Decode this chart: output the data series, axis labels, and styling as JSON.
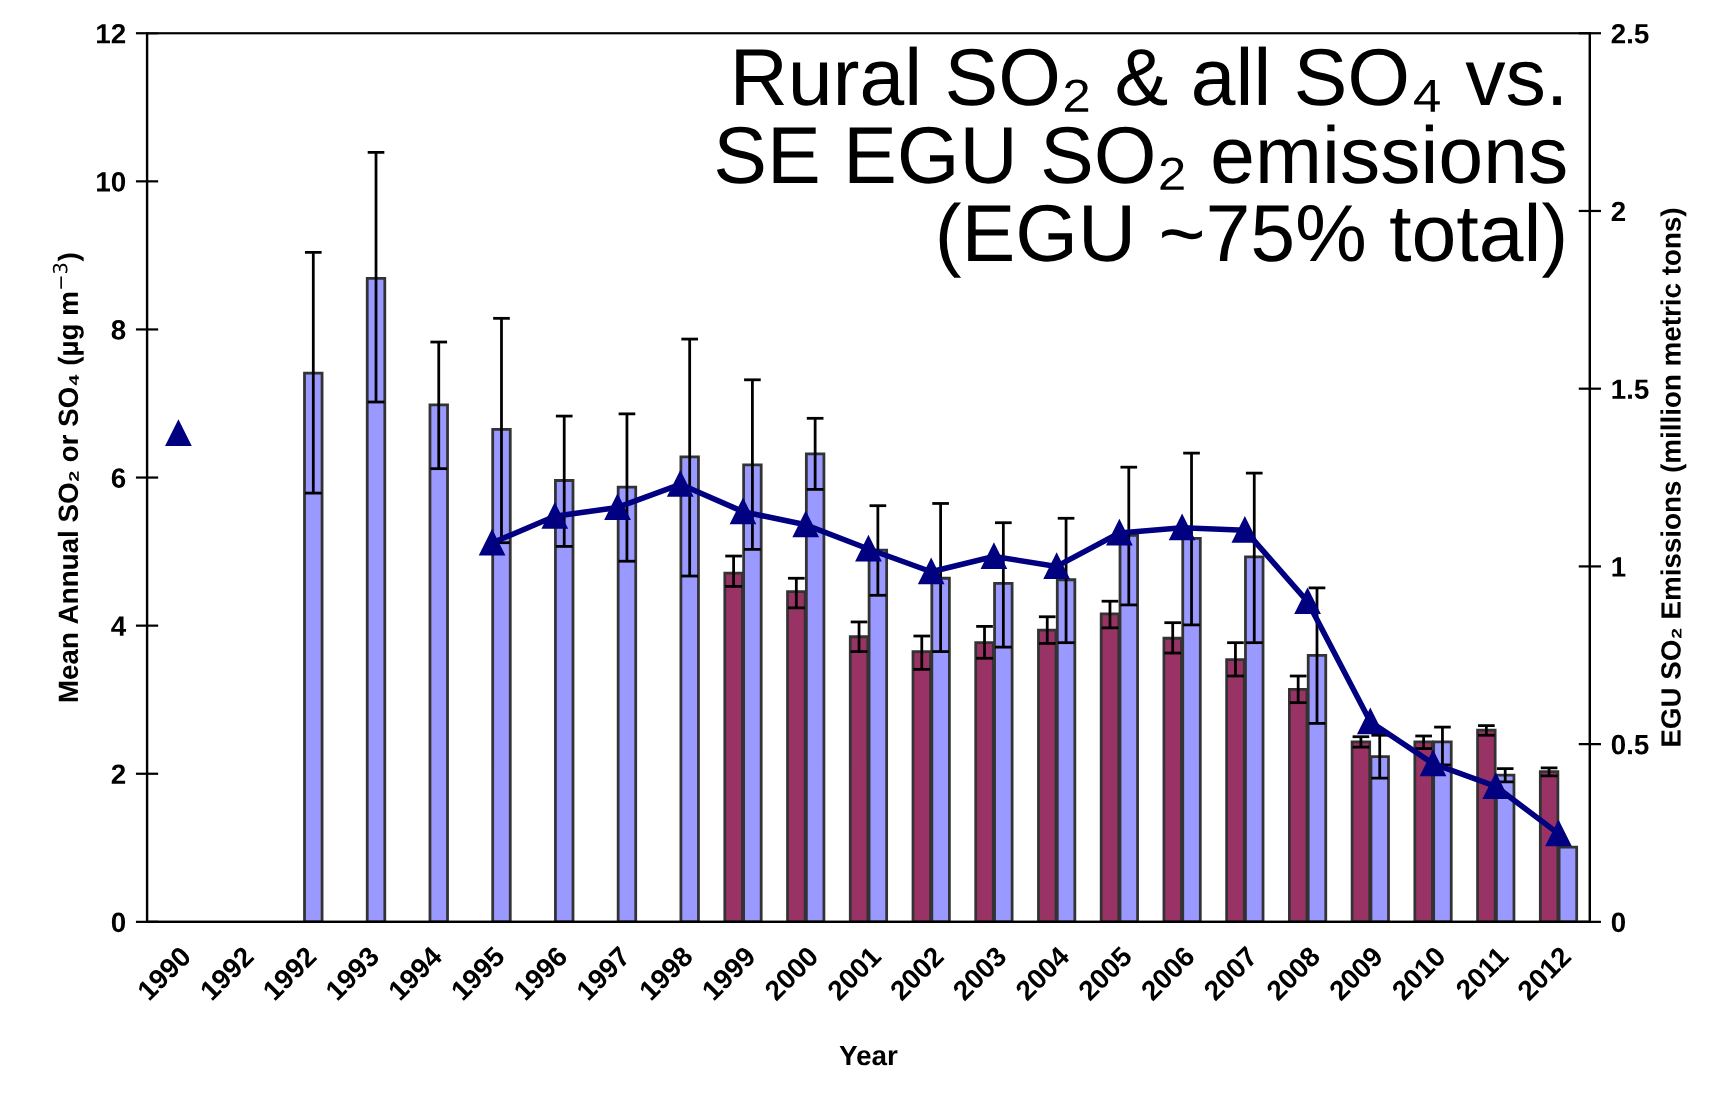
{
  "chart_data": {
    "type": "bar",
    "title": "Rural SO₂ & all SO₄ vs.\nSE EGU SO₂ emissions\n(EGU ~75% total)",
    "xlabel": "Year",
    "ylabel": "Mean Annual SO₂ or SO₄ (µg m$^{−3}$)",
    "y2label": "EGU SO₂ Emissions (million metric tons)",
    "categories": [
      "1990",
      "1992",
      "1992",
      "1993",
      "1994",
      "1995",
      "1996",
      "1997",
      "1998",
      "1999",
      "2000",
      "2001",
      "2002",
      "2003",
      "2004",
      "2005",
      "2006",
      "2007",
      "2008",
      "2009",
      "2010",
      "2011",
      "2012"
    ],
    "series": [
      {
        "color": "#993366",
        "values": [
          null,
          null,
          null,
          null,
          null,
          null,
          null,
          null,
          null,
          4.71,
          4.46,
          3.85,
          3.65,
          3.77,
          3.94,
          4.16,
          3.83,
          3.54,
          3.14,
          2.43,
          2.43,
          2.59,
          2.03
        ],
        "errors": [
          null,
          null,
          null,
          null,
          null,
          null,
          null,
          null,
          null,
          [
            4.53,
            4.94
          ],
          [
            4.24,
            4.64
          ],
          [
            3.65,
            4.05
          ],
          [
            3.41,
            3.86
          ],
          [
            3.56,
            3.99
          ],
          [
            3.76,
            4.12
          ],
          [
            3.97,
            4.33
          ],
          [
            3.63,
            4.04
          ],
          [
            3.32,
            3.77
          ],
          [
            2.96,
            3.32
          ],
          [
            2.36,
            2.5
          ],
          [
            2.34,
            2.51
          ],
          [
            2.52,
            2.65
          ],
          [
            1.97,
            2.08
          ]
        ]
      },
      {
        "color": "#9999ff",
        "values": [
          null,
          null,
          7.41,
          8.69,
          6.98,
          6.65,
          5.96,
          5.87,
          6.28,
          6.17,
          6.32,
          5.02,
          4.64,
          4.57,
          4.62,
          5.22,
          5.18,
          4.93,
          3.6,
          2.23,
          2.43,
          1.98,
          1.01
        ],
        "errors": [
          null,
          null,
          [
            5.79,
            9.04
          ],
          [
            7.02,
            10.39
          ],
          [
            6.12,
            7.83
          ],
          [
            5.12,
            8.15
          ],
          [
            5.07,
            6.83
          ],
          [
            4.87,
            6.86
          ],
          [
            4.67,
            7.87
          ],
          [
            5.03,
            7.32
          ],
          [
            5.84,
            6.8
          ],
          [
            4.41,
            5.62
          ],
          [
            3.65,
            5.65
          ],
          [
            3.71,
            5.39
          ],
          [
            3.77,
            5.45
          ],
          [
            4.28,
            6.14
          ],
          [
            4.01,
            6.33
          ],
          [
            3.77,
            6.06
          ],
          [
            2.68,
            4.51
          ],
          [
            1.94,
            2.52
          ],
          [
            2.12,
            2.63
          ],
          [
            1.89,
            2.07
          ],
          null
        ]
      },
      {
        "type": "line",
        "axis": "y2",
        "color": "#000080",
        "marker": "triangle",
        "values": [
          1.374,
          null,
          null,
          null,
          null,
          1.066,
          1.141,
          1.166,
          1.231,
          1.154,
          1.117,
          1.049,
          0.985,
          1.028,
          1.0,
          1.094,
          1.109,
          1.102,
          0.901,
          0.563,
          0.445,
          0.381,
          0.248
        ]
      }
    ],
    "ylim": [
      0,
      12
    ],
    "yticks": [
      0,
      2,
      4,
      6,
      8,
      10,
      12
    ],
    "y2lim": [
      0,
      2.5
    ],
    "y2ticks": [
      0,
      0.5,
      1,
      1.5,
      2,
      2.5
    ],
    "grid": false,
    "legend": false
  }
}
